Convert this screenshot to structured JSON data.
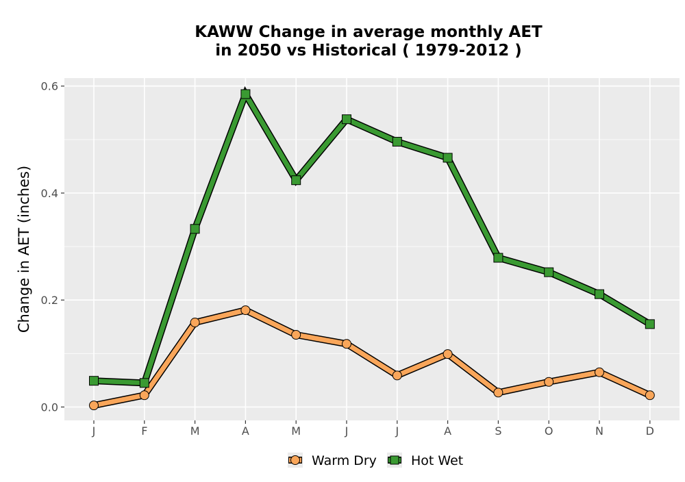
{
  "chart_data": {
    "type": "line",
    "title_line1": "KAWW  Change in average monthly AET",
    "title_line2": "in 2050 vs Historical ( 1979-2012 )",
    "xlabel": "",
    "ylabel": "Change in AET (inches)",
    "categories": [
      "J",
      "F",
      "M",
      "A",
      "M",
      "J",
      "J",
      "A",
      "S",
      "O",
      "N",
      "D"
    ],
    "ylim": [
      -0.025,
      0.615
    ],
    "yticks": [
      0.0,
      0.2,
      0.4,
      0.6
    ],
    "ytick_labels": [
      "0.0",
      "0.2",
      "0.4",
      "0.6"
    ],
    "grid": true,
    "legend_position": "bottom",
    "series": [
      {
        "name": "Warm Dry",
        "color": "#F9A65A",
        "marker": "circle",
        "values": [
          0.003,
          0.022,
          0.158,
          0.181,
          0.135,
          0.118,
          0.059,
          0.099,
          0.027,
          0.047,
          0.065,
          0.022
        ]
      },
      {
        "name": "Hot Wet",
        "color": "#3A9A32",
        "marker": "square",
        "values": [
          0.049,
          0.045,
          0.333,
          0.585,
          0.424,
          0.538,
          0.496,
          0.466,
          0.279,
          0.252,
          0.211,
          0.155
        ]
      }
    ]
  }
}
